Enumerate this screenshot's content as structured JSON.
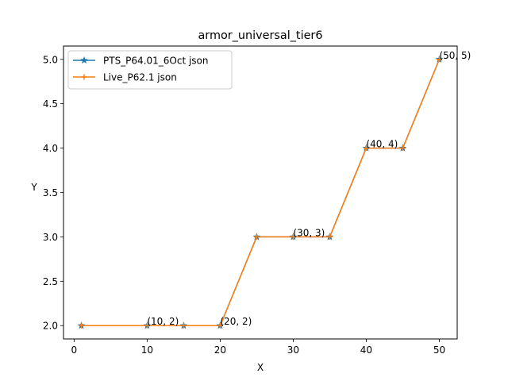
{
  "chart_data": {
    "type": "line",
    "title": "armor_universal_tier6",
    "xlabel": "X",
    "ylabel": "Y",
    "xlim": [
      -1.45,
      52.45
    ],
    "ylim": [
      1.85,
      5.15
    ],
    "xticks": [
      0,
      10,
      20,
      30,
      40,
      50
    ],
    "yticks": [
      2.0,
      2.5,
      3.0,
      3.5,
      4.0,
      4.5,
      5.0
    ],
    "xtick_labels": [
      "0",
      "10",
      "20",
      "30",
      "40",
      "50"
    ],
    "ytick_labels": [
      "2.0",
      "2.5",
      "3.0",
      "3.5",
      "4.0",
      "4.5",
      "5.0"
    ],
    "grid": false,
    "legend_position": "upper-left",
    "series": [
      {
        "name": "PTS_P64.01_6Oct json",
        "color": "#1f77b4",
        "marker": "star",
        "x": [
          1,
          10,
          15,
          20,
          25,
          30,
          35,
          40,
          45,
          50
        ],
        "y": [
          2,
          2,
          2,
          2,
          3,
          3,
          3,
          4,
          4,
          5
        ]
      },
      {
        "name": "Live_P62.1 json",
        "color": "#ff7f0e",
        "marker": "plus",
        "x": [
          1,
          10,
          15,
          20,
          25,
          30,
          35,
          40,
          45,
          50
        ],
        "y": [
          2,
          2,
          2,
          2,
          3,
          3,
          3,
          4,
          4,
          5
        ]
      }
    ],
    "annotations": [
      {
        "text": "(10, 2)",
        "x": 10,
        "y": 2
      },
      {
        "text": "(20, 2)",
        "x": 20,
        "y": 2
      },
      {
        "text": "(30, 3)",
        "x": 30,
        "y": 3
      },
      {
        "text": "(40, 4)",
        "x": 40,
        "y": 4
      },
      {
        "text": "(50, 5)",
        "x": 50,
        "y": 5
      }
    ]
  }
}
